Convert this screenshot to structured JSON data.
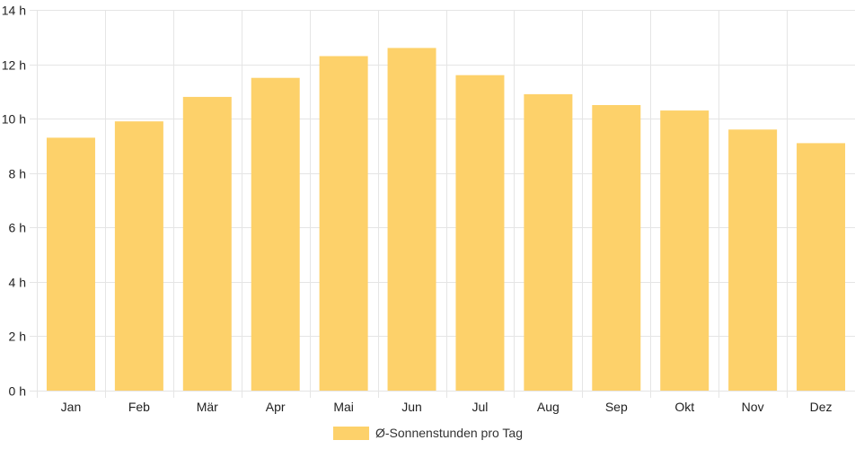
{
  "chart_data": {
    "type": "bar",
    "categories": [
      "Jan",
      "Feb",
      "Mär",
      "Apr",
      "Mai",
      "Jun",
      "Jul",
      "Aug",
      "Sep",
      "Okt",
      "Nov",
      "Dez"
    ],
    "series": [
      {
        "name": "Ø-Sonnenstunden pro Tag",
        "values": [
          9.3,
          9.9,
          10.8,
          11.5,
          12.3,
          12.6,
          11.6,
          10.9,
          10.5,
          10.3,
          9.6,
          9.1
        ],
        "color": "#fdd16a"
      }
    ],
    "ylim": [
      0,
      14
    ],
    "yticks": [
      0,
      2,
      4,
      6,
      8,
      10,
      12,
      14
    ],
    "ytick_labels": [
      "0 h",
      "2 h",
      "4 h",
      "6 h",
      "8 h",
      "10 h",
      "12 h",
      "14 h"
    ],
    "grid": true,
    "legend_position": "bottom"
  }
}
